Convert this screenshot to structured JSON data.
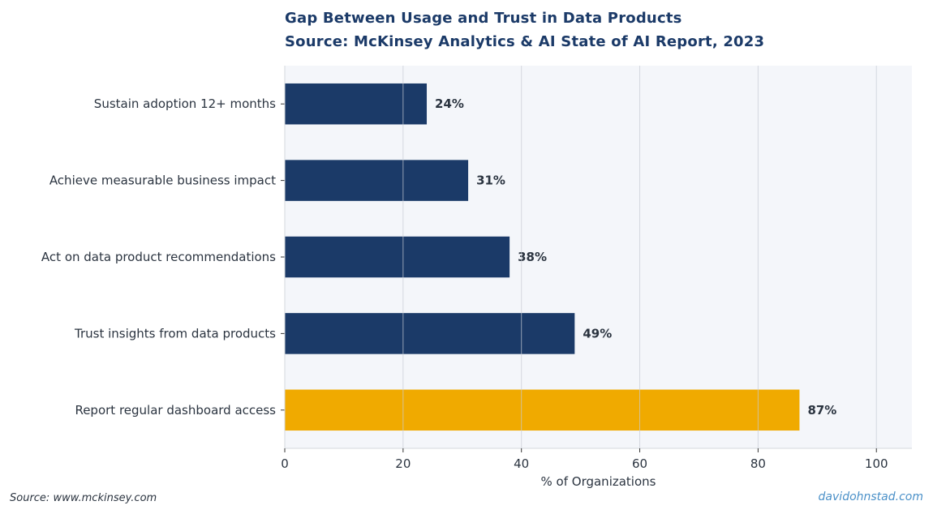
{
  "chart_data": {
    "type": "bar",
    "orientation": "horizontal",
    "title": "Gap Between Usage and Trust in Data Products",
    "subtitle": "Source: McKinsey Analytics & AI State of AI Report, 2023",
    "categories": [
      "Sustain adoption 12+ months",
      "Achieve measurable business impact",
      "Act on data product recommendations",
      "Trust insights from data products",
      "Report regular dashboard access"
    ],
    "values": [
      24,
      31,
      38,
      49,
      87
    ],
    "value_labels": [
      "24%",
      "31%",
      "38%",
      "49%",
      "87%"
    ],
    "bar_colors": [
      "#1b3a68",
      "#1b3a68",
      "#1b3a68",
      "#1b3a68",
      "#f0aa00"
    ],
    "xlabel": "% of Organizations",
    "ylabel": "",
    "xlim": [
      0,
      106
    ],
    "xticks": [
      0,
      20,
      40,
      60,
      80,
      100
    ],
    "grid": true,
    "background_color": "#f4f6fa"
  },
  "footer": {
    "source": "Source: www.mckinsey.com",
    "credit": "davidohnstad.com"
  }
}
